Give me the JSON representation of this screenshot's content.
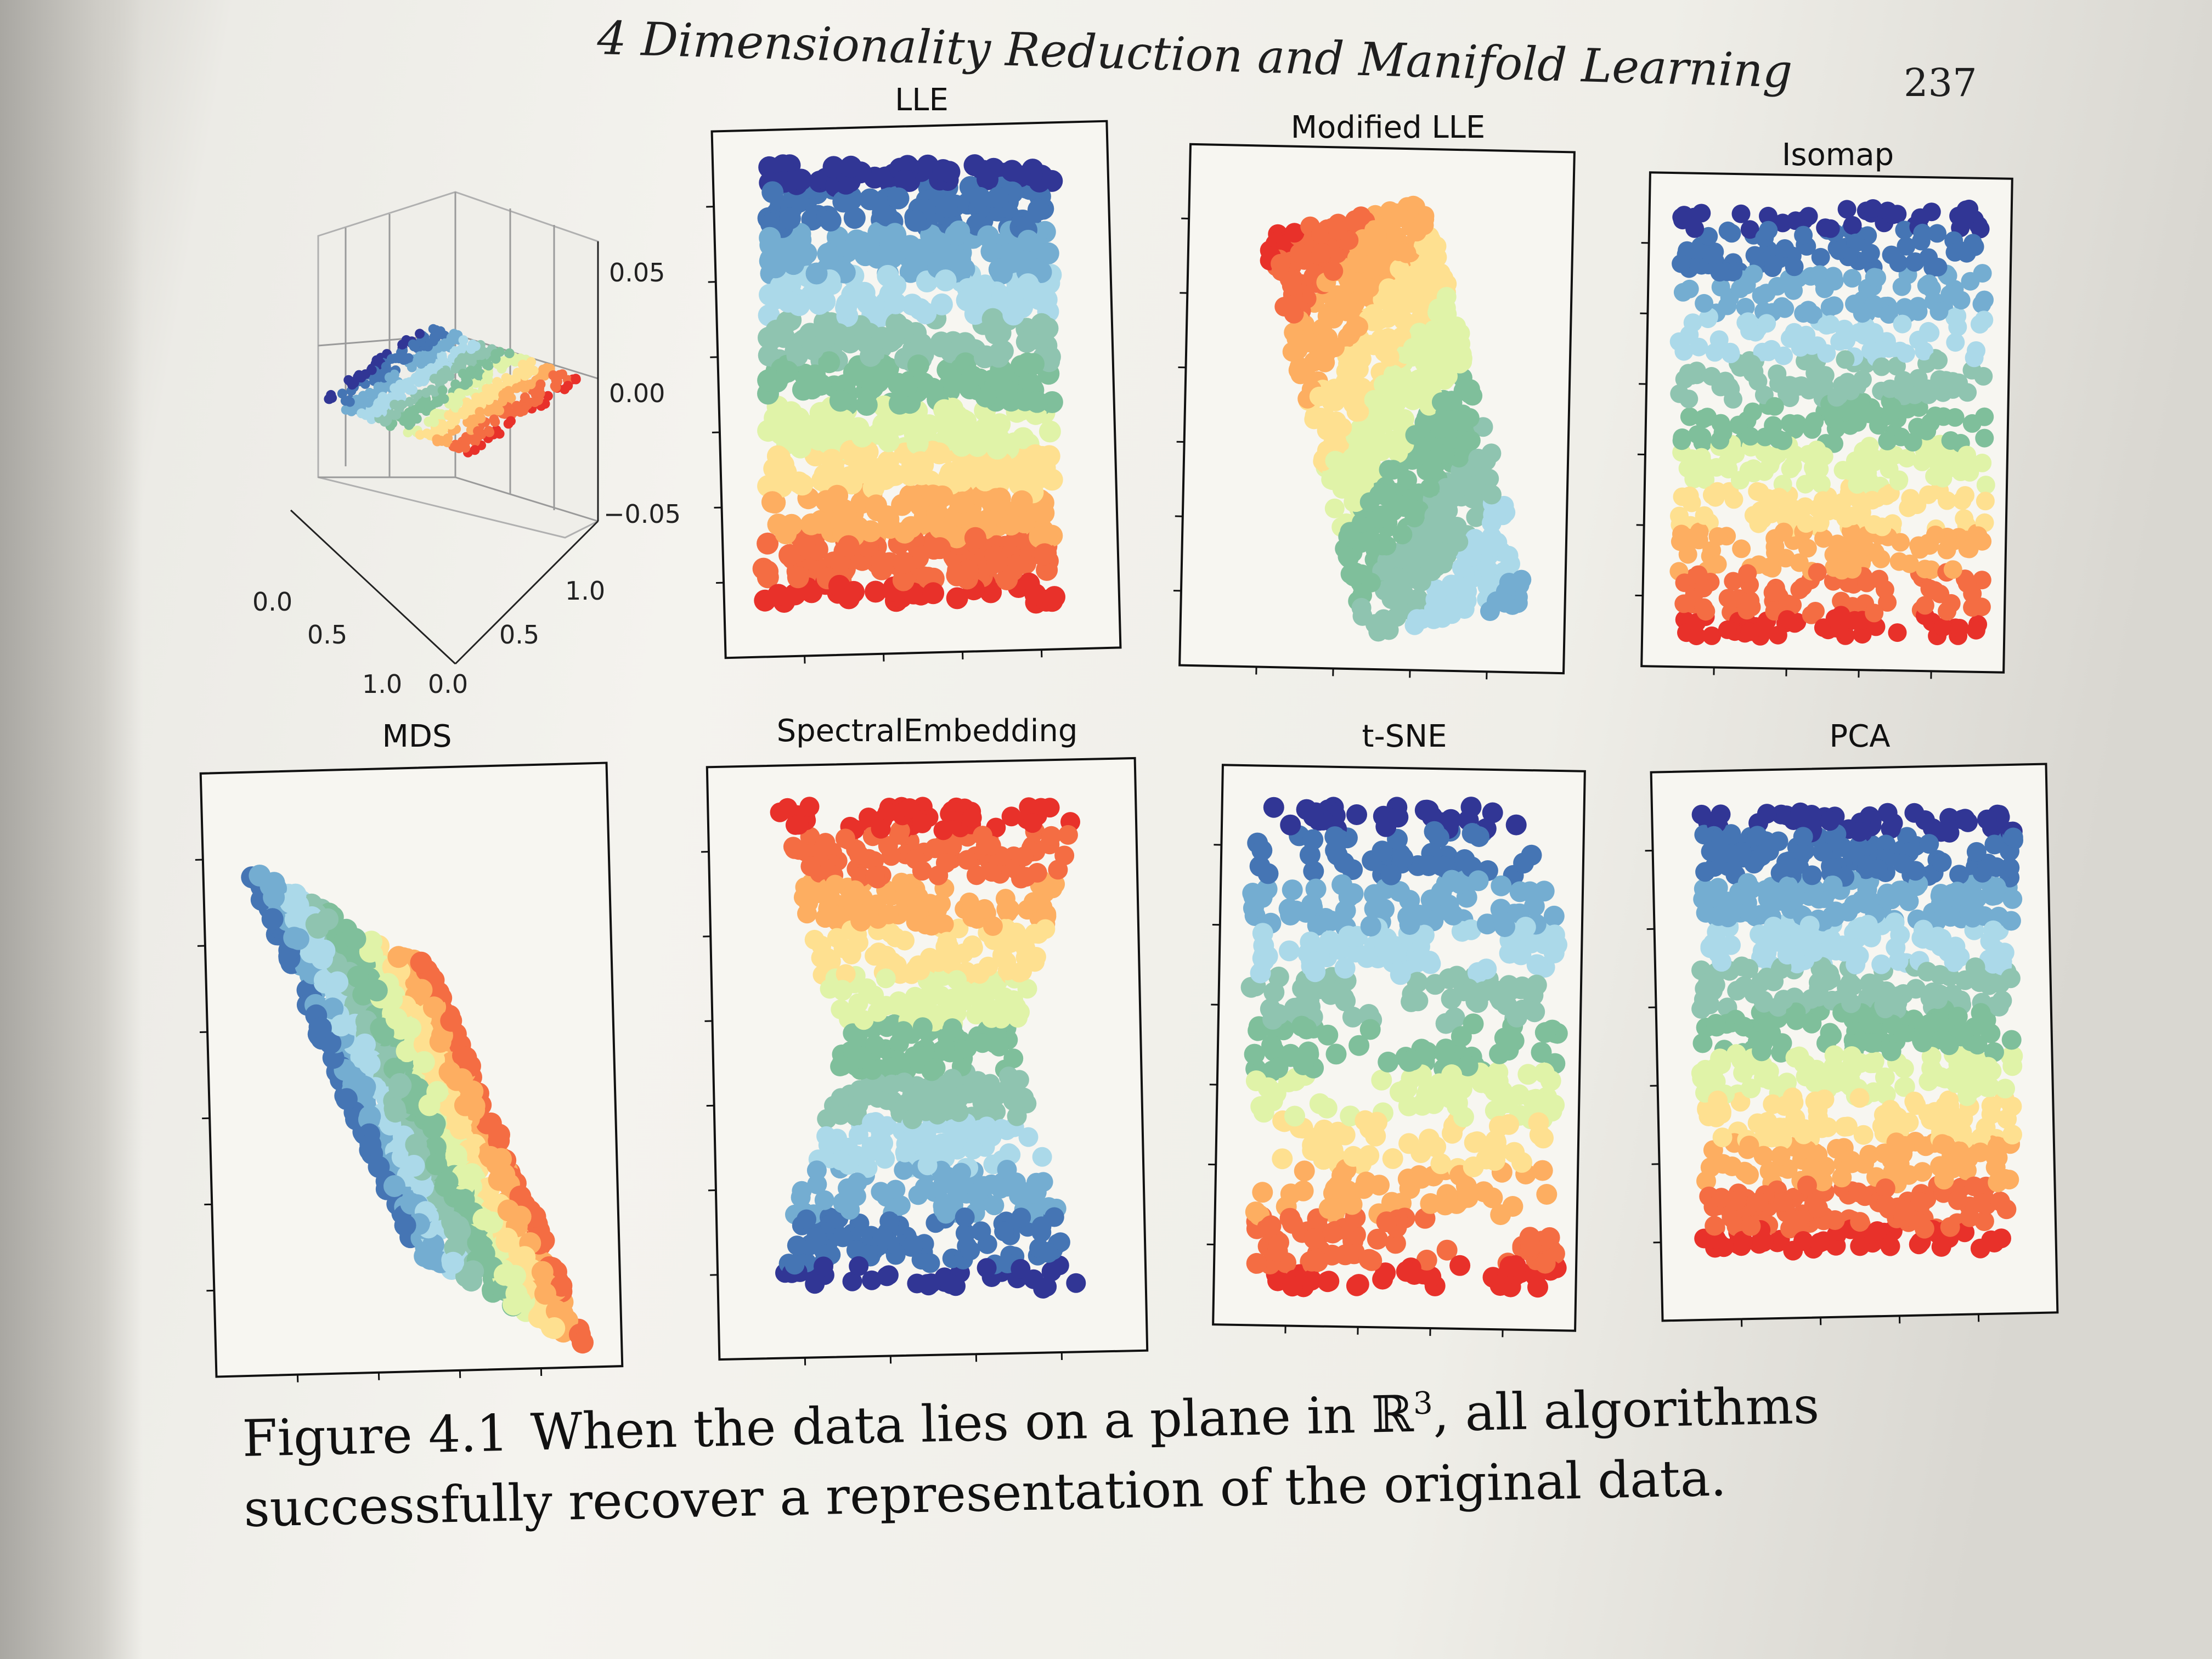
{
  "page": {
    "running_head": "4 Dimensionality Reduction and Manifold Learning",
    "page_number": "237"
  },
  "figure": {
    "panel_3d": {
      "z_ticks": [
        "0.05",
        "0.00",
        "−0.05"
      ],
      "x_ticks": [
        "0.0",
        "0.5",
        "1.0"
      ],
      "y_ticks": [
        "0.0",
        "0.5",
        "1.0"
      ]
    },
    "panels": [
      {
        "id": "lle",
        "title": "LLE",
        "shape": "rectangle",
        "gradient": "blue-top-red-bottom"
      },
      {
        "id": "modified-lle",
        "title": "Modified LLE",
        "shape": "rhombus",
        "gradient": "red-top-blue-bottom"
      },
      {
        "id": "isomap",
        "title": "Isomap",
        "shape": "rectangle",
        "gradient": "blue-top-red-bottom"
      },
      {
        "id": "mds",
        "title": "MDS",
        "shape": "rhombus",
        "gradient": "red-top-blue-bottom"
      },
      {
        "id": "spectral-embedding",
        "title": "SpectralEmbedding",
        "shape": "hourglass",
        "gradient": "red-top-blue-bottom"
      },
      {
        "id": "t-sne",
        "title": "t-SNE",
        "shape": "fragmented",
        "gradient": "blue-top-red-bottom"
      },
      {
        "id": "pca",
        "title": "PCA",
        "shape": "rectangle",
        "gradient": "blue-top-red-bottom"
      }
    ],
    "colormap": [
      "#313695",
      "#4575b4",
      "#74add1",
      "#abd9e9",
      "#8fc4b0",
      "#7fbf9b",
      "#e0f3a8",
      "#fee090",
      "#fdae61",
      "#f46d43",
      "#e8312a"
    ]
  },
  "caption": {
    "label": "Figure 4.1",
    "text_before_symbol": "When the data lies on a plane in ",
    "symbol": "ℝ",
    "superscript": "3",
    "text_after_symbol": ", all algorithms successfully recover a representation of the original data."
  }
}
